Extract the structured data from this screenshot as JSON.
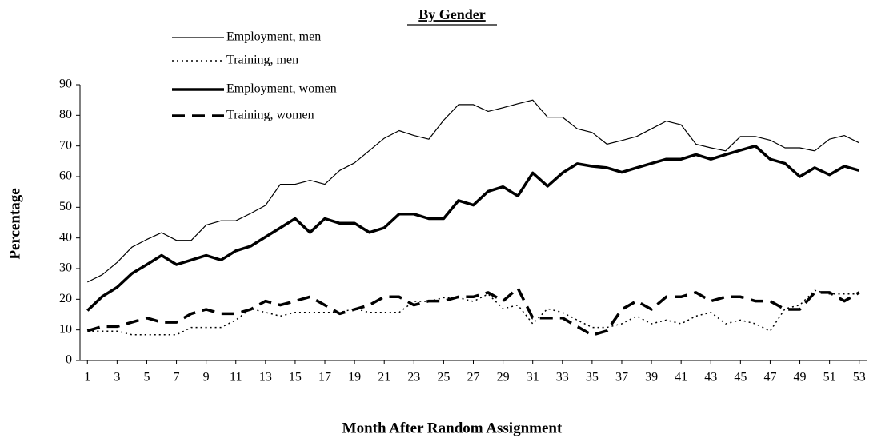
{
  "chart_data": {
    "type": "line",
    "title": "By Gender",
    "x_label": "Month After Random Assignment",
    "y_label": "Percentage",
    "x": [
      1,
      2,
      3,
      4,
      5,
      6,
      7,
      8,
      9,
      10,
      11,
      12,
      13,
      14,
      15,
      16,
      17,
      18,
      19,
      20,
      21,
      22,
      23,
      24,
      25,
      26,
      27,
      28,
      29,
      30,
      31,
      32,
      33,
      34,
      35,
      36,
      37,
      38,
      39,
      40,
      41,
      42,
      43,
      44,
      45,
      46,
      47,
      48,
      49,
      50,
      51,
      52,
      53
    ],
    "xlim": [
      0.5,
      53.5
    ],
    "xticks": [
      1,
      3,
      5,
      7,
      9,
      11,
      13,
      15,
      17,
      19,
      21,
      23,
      25,
      27,
      29,
      31,
      33,
      35,
      37,
      39,
      41,
      43,
      45,
      47,
      49,
      51,
      53
    ],
    "ylim": [
      0,
      90
    ],
    "yticks": [
      0,
      10,
      20,
      30,
      40,
      50,
      60,
      70,
      80,
      90
    ],
    "legend": "top-left",
    "series": [
      {
        "name": "Employment, men",
        "color": "#000000",
        "line_width": 1.2,
        "dash": "none",
        "values": [
          25.6,
          28,
          32,
          37,
          39.5,
          41.7,
          39.2,
          39.2,
          44.2,
          45.6,
          45.6,
          48,
          50.6,
          57.5,
          57.5,
          58.8,
          57.5,
          62,
          64.5,
          68.5,
          72.5,
          75,
          73.4,
          72.2,
          78.4,
          83.5,
          83.5,
          81.3,
          82.5,
          83.8,
          85,
          79.4,
          79.4,
          75.6,
          74.4,
          70.6,
          71.8,
          73.1,
          75.6,
          78.1,
          76.9,
          70.6,
          69.4,
          68.4,
          73.1,
          73.1,
          71.9,
          69.4,
          69.4,
          68.4,
          72.2,
          73.4,
          71
        ]
      },
      {
        "name": "Training, men",
        "color": "#000000",
        "line_width": 1.5,
        "dash": "2,4",
        "values": [
          9.6,
          9.6,
          9.6,
          8.4,
          8.4,
          8.4,
          8.4,
          10.8,
          10.8,
          10.8,
          13.2,
          16.9,
          15.7,
          14.5,
          15.7,
          15.7,
          15.7,
          15.7,
          16.9,
          15.7,
          15.7,
          15.7,
          19.3,
          19.3,
          20.5,
          20.5,
          19.3,
          21.7,
          16.9,
          18.1,
          12,
          16.9,
          15.7,
          13.2,
          10.8,
          10.8,
          12,
          14.5,
          12,
          13.2,
          12,
          14.5,
          15.7,
          12,
          13.2,
          12,
          9.6,
          16.9,
          18.1,
          22.9,
          21.7,
          21.7,
          21.7
        ]
      },
      {
        "name": "Employment, women",
        "color": "#000000",
        "line_width": 3.5,
        "dash": "none",
        "values": [
          16.3,
          20.9,
          23.9,
          28.4,
          31.3,
          34.3,
          31.3,
          32.8,
          34.3,
          32.8,
          35.8,
          37.3,
          40.3,
          43.3,
          46.3,
          41.8,
          46.3,
          44.8,
          44.8,
          41.8,
          43.3,
          47.8,
          47.8,
          46.3,
          46.3,
          52.2,
          50.7,
          55.2,
          56.7,
          53.7,
          61.2,
          56.9,
          61.2,
          64.2,
          63.4,
          62.9,
          61.4,
          62.9,
          64.3,
          65.7,
          65.7,
          67.2,
          65.7,
          67.2,
          68.6,
          70,
          65.7,
          64.3,
          60,
          62.9,
          60.6,
          63.4,
          62
        ]
      },
      {
        "name": "Training, women",
        "color": "#000000",
        "line_width": 3.5,
        "dash": "16,9",
        "values": [
          9.7,
          11.1,
          11.1,
          12.5,
          13.9,
          12.5,
          12.5,
          15.3,
          16.7,
          15.3,
          15.3,
          16.7,
          19.4,
          18.1,
          19.4,
          20.8,
          18.1,
          15.3,
          16.7,
          18.1,
          20.8,
          20.8,
          18.1,
          19.4,
          19.4,
          20.8,
          20.8,
          22.2,
          19.4,
          23.6,
          13.9,
          13.9,
          13.9,
          11.1,
          8.3,
          9.7,
          16.7,
          19.4,
          16.7,
          20.8,
          20.8,
          22.2,
          19.4,
          20.8,
          20.8,
          19.4,
          19.4,
          16.7,
          16.7,
          22.2,
          22.2,
          19.4,
          22.2
        ]
      }
    ]
  }
}
